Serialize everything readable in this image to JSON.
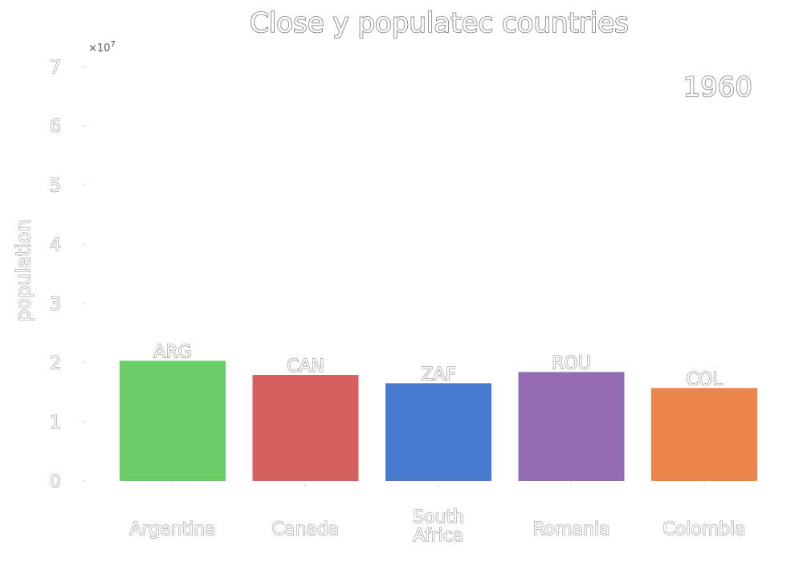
{
  "chart_data": {
    "type": "bar",
    "title": "Close y populatec countries",
    "ylabel": "population",
    "xlabel": "",
    "year_label": "1960",
    "y_multiplier": "×10",
    "y_multiplier_exp": "7",
    "ylim": [
      0,
      70000000
    ],
    "y_ticks": [
      0,
      10000000,
      20000000,
      30000000,
      40000000,
      50000000,
      60000000,
      70000000
    ],
    "y_tick_labels": [
      "0",
      "1",
      "2",
      "3",
      "4",
      "5",
      "6",
      "7"
    ],
    "grid": false,
    "categories": [
      "Argentina",
      "Canada",
      "South Africa",
      "Romania",
      "Colombia"
    ],
    "category_lines": [
      [
        "Argentina"
      ],
      [
        "Canada"
      ],
      [
        "South",
        "Africa"
      ],
      [
        "Romania"
      ],
      [
        "Colombia"
      ]
    ],
    "codes": [
      "ARG",
      "CAN",
      "ZAF",
      "ROU",
      "COL"
    ],
    "values": [
      20300000,
      17900000,
      16500000,
      18400000,
      15700000
    ],
    "colors": [
      "#6bcd66",
      "#d65f5f",
      "#4878cf",
      "#956cb4",
      "#ee854a"
    ]
  }
}
